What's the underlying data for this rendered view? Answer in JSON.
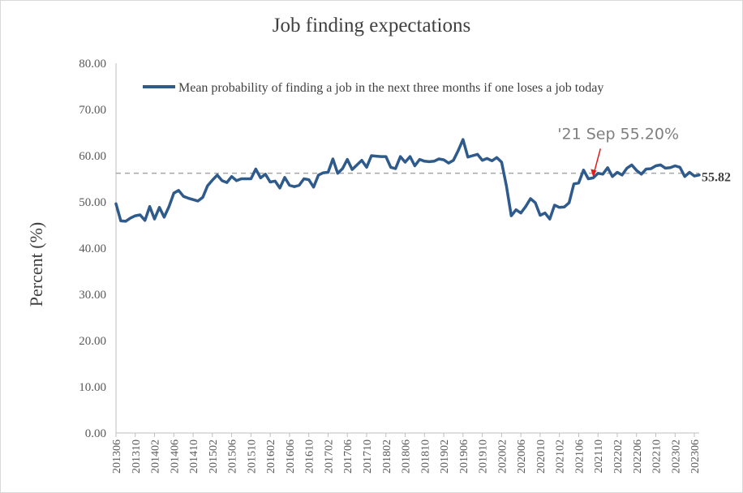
{
  "chart_data": {
    "type": "line",
    "title": "Job finding expectations",
    "ylabel": "Percent (%)",
    "xlabel": "",
    "ylim": [
      0,
      80
    ],
    "yticks": [
      "0.00",
      "10.00",
      "20.00",
      "30.00",
      "40.00",
      "50.00",
      "60.00",
      "70.00",
      "80.00"
    ],
    "xticks": [
      "201306",
      "201310",
      "201402",
      "201406",
      "201410",
      "201502",
      "201506",
      "201510",
      "201602",
      "201606",
      "201610",
      "201702",
      "201706",
      "201710",
      "201802",
      "201806",
      "201810",
      "201902",
      "201906",
      "201910",
      "202002",
      "202006",
      "202010",
      "202102",
      "202106",
      "202110",
      "202202",
      "202206",
      "202210",
      "202302",
      "202306"
    ],
    "grid": false,
    "legend_position": "top",
    "reference_line": {
      "value": 56.2,
      "style": "dashed",
      "color": "#a6a6a6"
    },
    "end_label": "55.82",
    "annotation": {
      "text": "'21 Sep 55.20%",
      "x": "202109",
      "y": 55.2,
      "arrow_color": "#e31a1c"
    },
    "series": [
      {
        "name": "Mean probability of finding a job in the next three months if one loses a job today",
        "color": "#2e5a8c",
        "start": "201306",
        "values": [
          49.6,
          45.9,
          45.8,
          46.5,
          47.0,
          47.2,
          46.0,
          49.0,
          46.3,
          48.8,
          46.7,
          49.0,
          51.9,
          52.5,
          51.2,
          50.8,
          50.5,
          50.2,
          51.0,
          53.5,
          54.7,
          55.8,
          54.6,
          54.2,
          55.5,
          54.6,
          55.0,
          55.0,
          55.0,
          57.1,
          55.2,
          56.0,
          54.3,
          54.5,
          53.0,
          55.3,
          53.6,
          53.3,
          53.6,
          55.0,
          54.8,
          53.2,
          55.8,
          56.3,
          56.4,
          59.3,
          56.2,
          57.2,
          59.2,
          57.0,
          58.0,
          59.0,
          57.5,
          60.0,
          59.9,
          59.8,
          59.8,
          57.5,
          57.2,
          59.8,
          58.6,
          59.8,
          57.8,
          59.2,
          58.8,
          58.7,
          58.8,
          59.3,
          59.1,
          58.4,
          59.0,
          61.1,
          63.5,
          59.7,
          60.0,
          60.3,
          59.0,
          59.4,
          58.9,
          59.6,
          58.6,
          53.5,
          47.0,
          48.3,
          47.6,
          49.0,
          50.7,
          49.8,
          47.1,
          47.6,
          46.3,
          49.3,
          48.8,
          48.9,
          49.8,
          53.9,
          54.1,
          56.9,
          55.0,
          55.2,
          56.2,
          56.0,
          57.4,
          55.5,
          56.4,
          55.8,
          57.3,
          58.0,
          56.8,
          56.0,
          57.1,
          57.2,
          57.8,
          58.0,
          57.3,
          57.4,
          57.8,
          57.5,
          55.5,
          56.4,
          55.6,
          55.82
        ]
      }
    ]
  }
}
